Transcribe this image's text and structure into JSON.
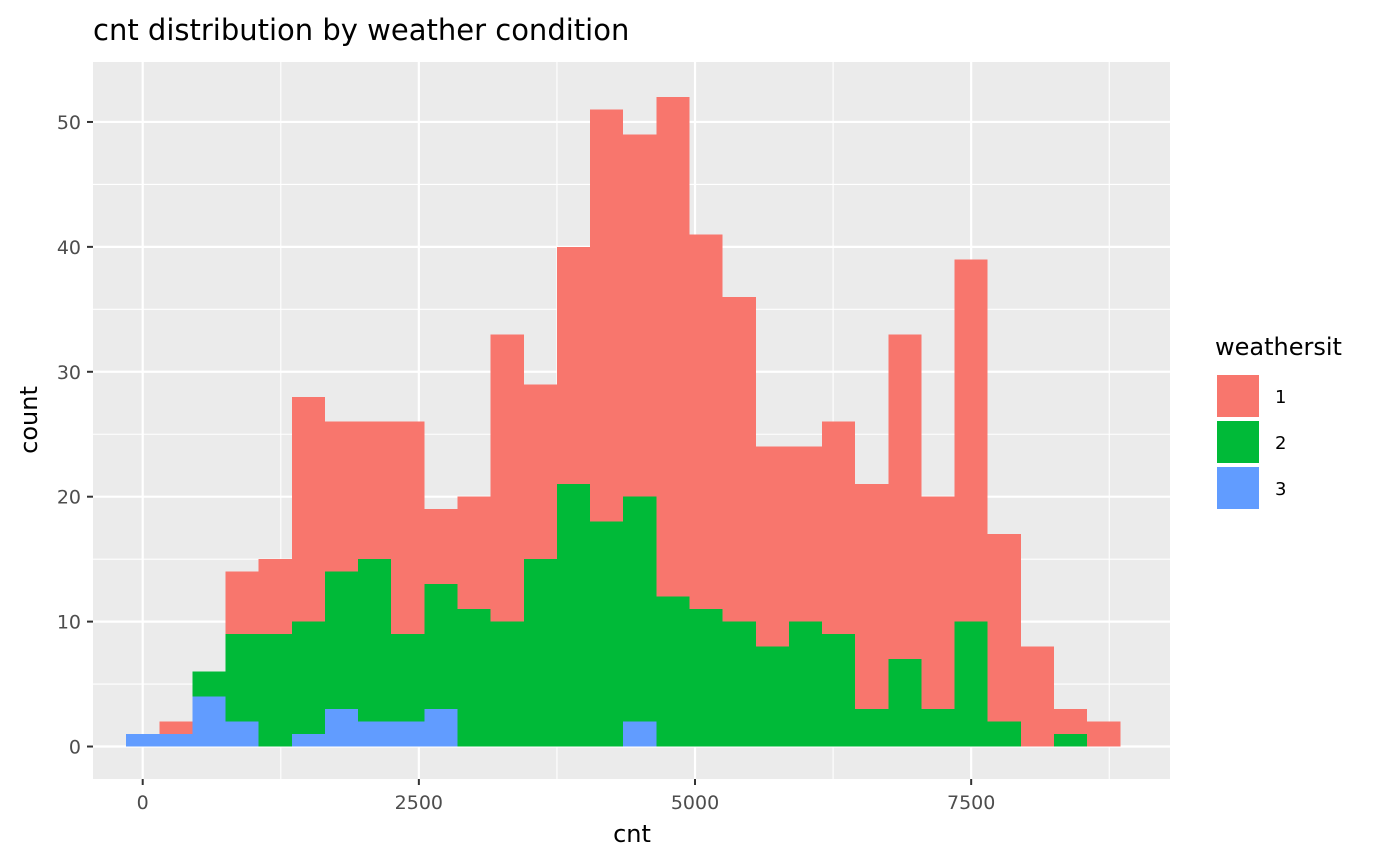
{
  "chart_data": {
    "type": "bar",
    "subtype": "stacked histogram",
    "title": "cnt distribution by weather condition",
    "xlabel": "cnt",
    "ylabel": "count",
    "xlim": [
      -450,
      9300
    ],
    "ylim": [
      -2.6,
      54.8
    ],
    "bin_width": 300,
    "x_ticks": [
      0,
      2500,
      5000,
      7500
    ],
    "x_tick_labels": [
      "0",
      "2500",
      "5000",
      "7500"
    ],
    "y_ticks": [
      0,
      10,
      20,
      30,
      40,
      50
    ],
    "y_tick_labels": [
      "0",
      "10",
      "20",
      "30",
      "40",
      "50"
    ],
    "x": [
      0,
      300,
      600,
      900,
      1200,
      1500,
      1800,
      2100,
      2400,
      2700,
      3000,
      3300,
      3600,
      3900,
      4200,
      4500,
      4800,
      5100,
      5400,
      5700,
      6000,
      6300,
      6600,
      6900,
      7200,
      7500,
      7800,
      8100,
      8400,
      8700
    ],
    "series": [
      {
        "name": "3",
        "color": "#619CFF",
        "values": [
          1,
          1,
          4,
          2,
          0,
          1,
          3,
          2,
          2,
          3,
          0,
          0,
          0,
          0,
          0,
          2,
          0,
          0,
          0,
          0,
          0,
          0,
          0,
          0,
          0,
          0,
          0,
          0,
          0,
          0
        ]
      },
      {
        "name": "2",
        "color": "#00BA38",
        "values": [
          0,
          0,
          2,
          7,
          9,
          9,
          11,
          13,
          7,
          10,
          11,
          10,
          15,
          21,
          18,
          18,
          12,
          11,
          10,
          8,
          10,
          9,
          3,
          7,
          3,
          10,
          2,
          0,
          1,
          0
        ]
      },
      {
        "name": "1",
        "color": "#F8766D",
        "values": [
          0,
          1,
          0,
          5,
          6,
          18,
          12,
          11,
          17,
          6,
          9,
          23,
          14,
          19,
          33,
          29,
          40,
          30,
          26,
          16,
          14,
          17,
          18,
          26,
          17,
          29,
          15,
          8,
          2,
          2
        ]
      }
    ],
    "grid": true,
    "legend": {
      "title": "weathersit",
      "position": "right",
      "items": [
        {
          "label": "1",
          "color": "#F8766D"
        },
        {
          "label": "2",
          "color": "#00BA38"
        },
        {
          "label": "3",
          "color": "#619CFF"
        }
      ]
    }
  }
}
